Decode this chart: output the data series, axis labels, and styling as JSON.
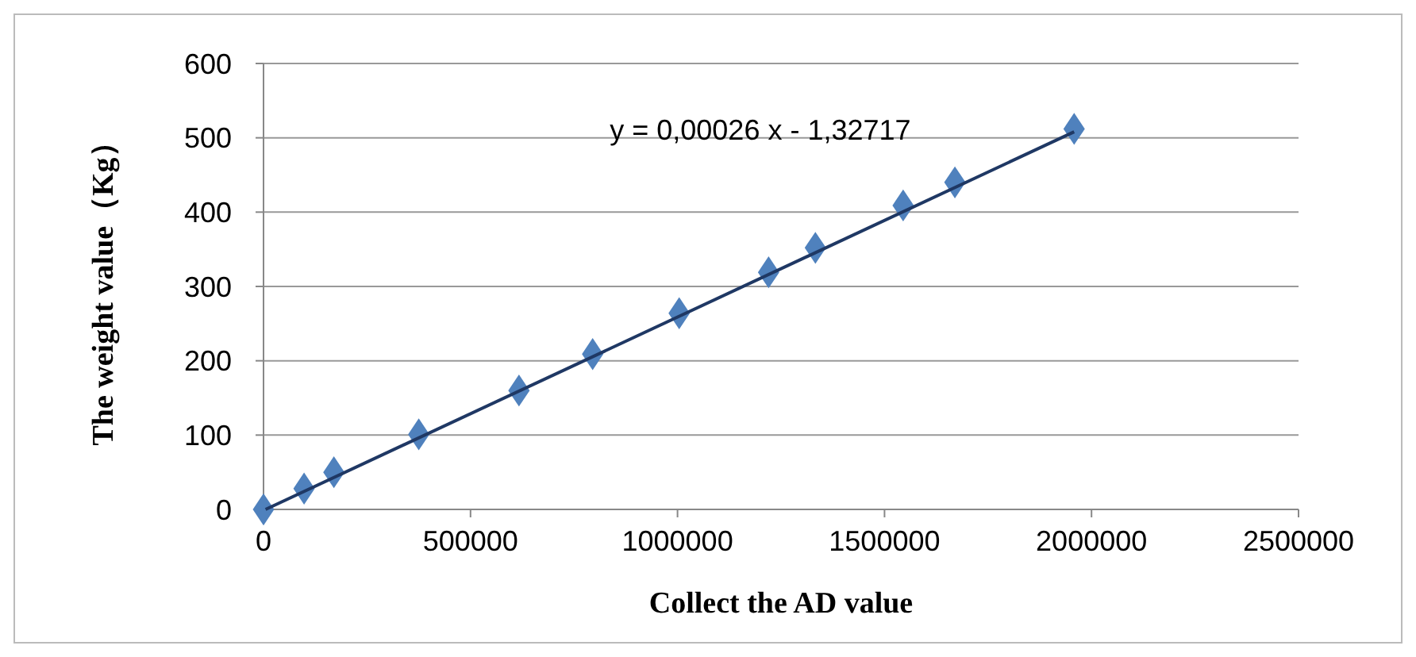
{
  "chart_data": {
    "type": "scatter",
    "xlabel": "Collect the AD value",
    "ylabel": "The weight value（Kg）",
    "xlim": [
      0,
      2500000
    ],
    "xticks": [
      0,
      500000,
      1000000,
      1500000,
      2000000,
      2500000
    ],
    "ylim": [
      0,
      600
    ],
    "yticks": [
      0,
      100,
      200,
      300,
      400,
      500,
      600
    ],
    "grid": "y",
    "annotations": [
      "y = 0,00026 x - 1,32717"
    ],
    "series": [
      {
        "color": "#4f81bd",
        "marker": "diamond",
        "x": [
          0,
          98000,
          170000,
          375000,
          617000,
          795000,
          1004000,
          1220000,
          1333000,
          1545000,
          1670000,
          1958000
        ],
        "values": [
          0,
          28,
          50,
          101,
          160,
          209,
          264,
          319,
          352,
          409,
          440,
          512
        ]
      },
      {
        "type": "line",
        "color": "#1f3864",
        "marker": "none",
        "line_style": "solid",
        "x": [
          5000,
          1958000
        ],
        "values": [
          0,
          508
        ]
      }
    ]
  }
}
